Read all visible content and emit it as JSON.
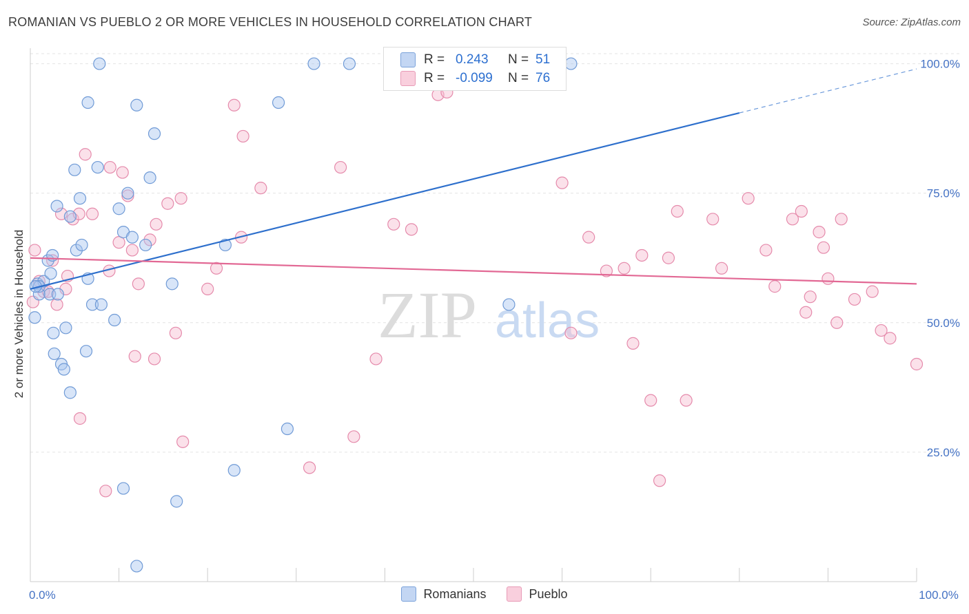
{
  "title": "ROMANIAN VS PUEBLO 2 OR MORE VEHICLES IN HOUSEHOLD CORRELATION CHART",
  "source": "Source: ZipAtlas.com",
  "watermark": {
    "zip": "ZIP",
    "atlas": "atlas"
  },
  "colors": {
    "romanians_fill": "#a9c6ef",
    "romanians_stroke": "#6f9ad6",
    "romanians_line": "#2d6fcc",
    "pueblo_fill": "#f6bcd0",
    "pueblo_stroke": "#e58aab",
    "pueblo_line": "#e26894",
    "tick_color": "#4472c4"
  },
  "legend_stats": [
    {
      "series": "Romanians",
      "r_label": "R =",
      "r_value": "0.243",
      "n_label": "N =",
      "n_value": "51"
    },
    {
      "series": "Pueblo",
      "r_label": "R =",
      "r_value": "-0.099",
      "n_label": "N =",
      "n_value": "76"
    }
  ],
  "chart_data": {
    "type": "scatter",
    "title": "ROMANIAN VS PUEBLO 2 OR MORE VEHICLES IN HOUSEHOLD CORRELATION CHART",
    "xlabel": "",
    "ylabel": "2 or more Vehicles in Household",
    "xlim": [
      0,
      100
    ],
    "ylim": [
      0,
      103
    ],
    "x_tick_labels": [
      {
        "value": 0,
        "label": "0.0%"
      },
      {
        "value": 100,
        "label": "100.0%"
      }
    ],
    "y_tick_labels": [
      {
        "value": 25,
        "label": "25.0%"
      },
      {
        "value": 50,
        "label": "50.0%"
      },
      {
        "value": 75,
        "label": "75.0%"
      },
      {
        "value": 100,
        "label": "100.0%"
      }
    ],
    "grid": true,
    "legend": [
      "Romanians",
      "Pueblo"
    ],
    "series": [
      {
        "name": "Romanians",
        "points": [
          [
            0.5,
            51
          ],
          [
            0.8,
            57.5
          ],
          [
            1,
            55.5
          ],
          [
            1.5,
            58
          ],
          [
            2,
            62
          ],
          [
            2.2,
            55.5
          ],
          [
            2.3,
            59.5
          ],
          [
            2.5,
            63
          ],
          [
            2.6,
            48
          ],
          [
            2.7,
            44
          ],
          [
            3,
            72.5
          ],
          [
            3.1,
            55.5
          ],
          [
            3.5,
            42
          ],
          [
            3.8,
            41
          ],
          [
            4,
            49
          ],
          [
            4.5,
            36.5
          ],
          [
            4.5,
            70.5
          ],
          [
            5,
            79.5
          ],
          [
            5.2,
            64
          ],
          [
            5.6,
            74
          ],
          [
            5.8,
            65
          ],
          [
            6.5,
            58.5
          ],
          [
            6.3,
            44.5
          ],
          [
            7,
            53.5
          ],
          [
            6.5,
            92.5
          ],
          [
            7.6,
            80
          ],
          [
            7.8,
            100
          ],
          [
            8,
            53.5
          ],
          [
            9.5,
            50.5
          ],
          [
            10,
            72
          ],
          [
            10.5,
            67.5
          ],
          [
            10.5,
            18
          ],
          [
            11,
            75
          ],
          [
            11.5,
            66.5
          ],
          [
            12,
            92
          ],
          [
            12,
            3
          ],
          [
            13,
            65
          ],
          [
            13.5,
            78
          ],
          [
            14,
            86.5
          ],
          [
            16,
            57.5
          ],
          [
            16.5,
            15.5
          ],
          [
            22,
            65
          ],
          [
            23,
            21.5
          ],
          [
            28,
            92.5
          ],
          [
            29,
            29.5
          ],
          [
            32,
            100
          ],
          [
            36,
            100
          ],
          [
            54,
            53.5
          ],
          [
            61,
            100
          ],
          [
            1,
            57
          ],
          [
            0.6,
            57
          ]
        ],
        "trend": {
          "x0": 0,
          "y0": 56.5,
          "x1": 80,
          "y1": 90.5,
          "dash_to_x": 100,
          "dash_to_y": 99
        }
      },
      {
        "name": "Pueblo",
        "points": [
          [
            0.3,
            54
          ],
          [
            0.5,
            64
          ],
          [
            1,
            58
          ],
          [
            1.5,
            56
          ],
          [
            2,
            56
          ],
          [
            2.5,
            62
          ],
          [
            3,
            53.5
          ],
          [
            3.5,
            71
          ],
          [
            4,
            56.5
          ],
          [
            4.2,
            59
          ],
          [
            4.8,
            70
          ],
          [
            5.5,
            71
          ],
          [
            5.6,
            31.5
          ],
          [
            6.2,
            82.5
          ],
          [
            7,
            71
          ],
          [
            8.5,
            17.5
          ],
          [
            8.9,
            60
          ],
          [
            9,
            80
          ],
          [
            10,
            65.5
          ],
          [
            10.4,
            79
          ],
          [
            11,
            74.5
          ],
          [
            11.5,
            64
          ],
          [
            11.8,
            43.5
          ],
          [
            12.2,
            57.5
          ],
          [
            13.5,
            66
          ],
          [
            14,
            43
          ],
          [
            14.2,
            69
          ],
          [
            15.5,
            73
          ],
          [
            16.4,
            48
          ],
          [
            17,
            74
          ],
          [
            17.2,
            27
          ],
          [
            20,
            56.5
          ],
          [
            21,
            60.5
          ],
          [
            23,
            92
          ],
          [
            23.8,
            66.5
          ],
          [
            24,
            86
          ],
          [
            26,
            76
          ],
          [
            31.5,
            22
          ],
          [
            35,
            80
          ],
          [
            36.5,
            28
          ],
          [
            39,
            43
          ],
          [
            41,
            69
          ],
          [
            43,
            68
          ],
          [
            46,
            94
          ],
          [
            47,
            94.5
          ],
          [
            60,
            77
          ],
          [
            61,
            48
          ],
          [
            63,
            66.5
          ],
          [
            65,
            60
          ],
          [
            67,
            60.5
          ],
          [
            68,
            46
          ],
          [
            69,
            63
          ],
          [
            70,
            35
          ],
          [
            71,
            19.5
          ],
          [
            72,
            62.5
          ],
          [
            73,
            71.5
          ],
          [
            74,
            35
          ],
          [
            77,
            70
          ],
          [
            78,
            60.5
          ],
          [
            81,
            74
          ],
          [
            83,
            64
          ],
          [
            84,
            57
          ],
          [
            86,
            70
          ],
          [
            87,
            71.5
          ],
          [
            87.5,
            52
          ],
          [
            88,
            55
          ],
          [
            89,
            67.5
          ],
          [
            89.5,
            64.5
          ],
          [
            90,
            58.5
          ],
          [
            91,
            50
          ],
          [
            91.5,
            70
          ],
          [
            93,
            54.5
          ],
          [
            95,
            56
          ],
          [
            96,
            48.5
          ],
          [
            97,
            47
          ],
          [
            100,
            42
          ]
        ],
        "trend": {
          "x0": 0,
          "y0": 62.5,
          "x1": 100,
          "y1": 57.5
        }
      }
    ]
  }
}
